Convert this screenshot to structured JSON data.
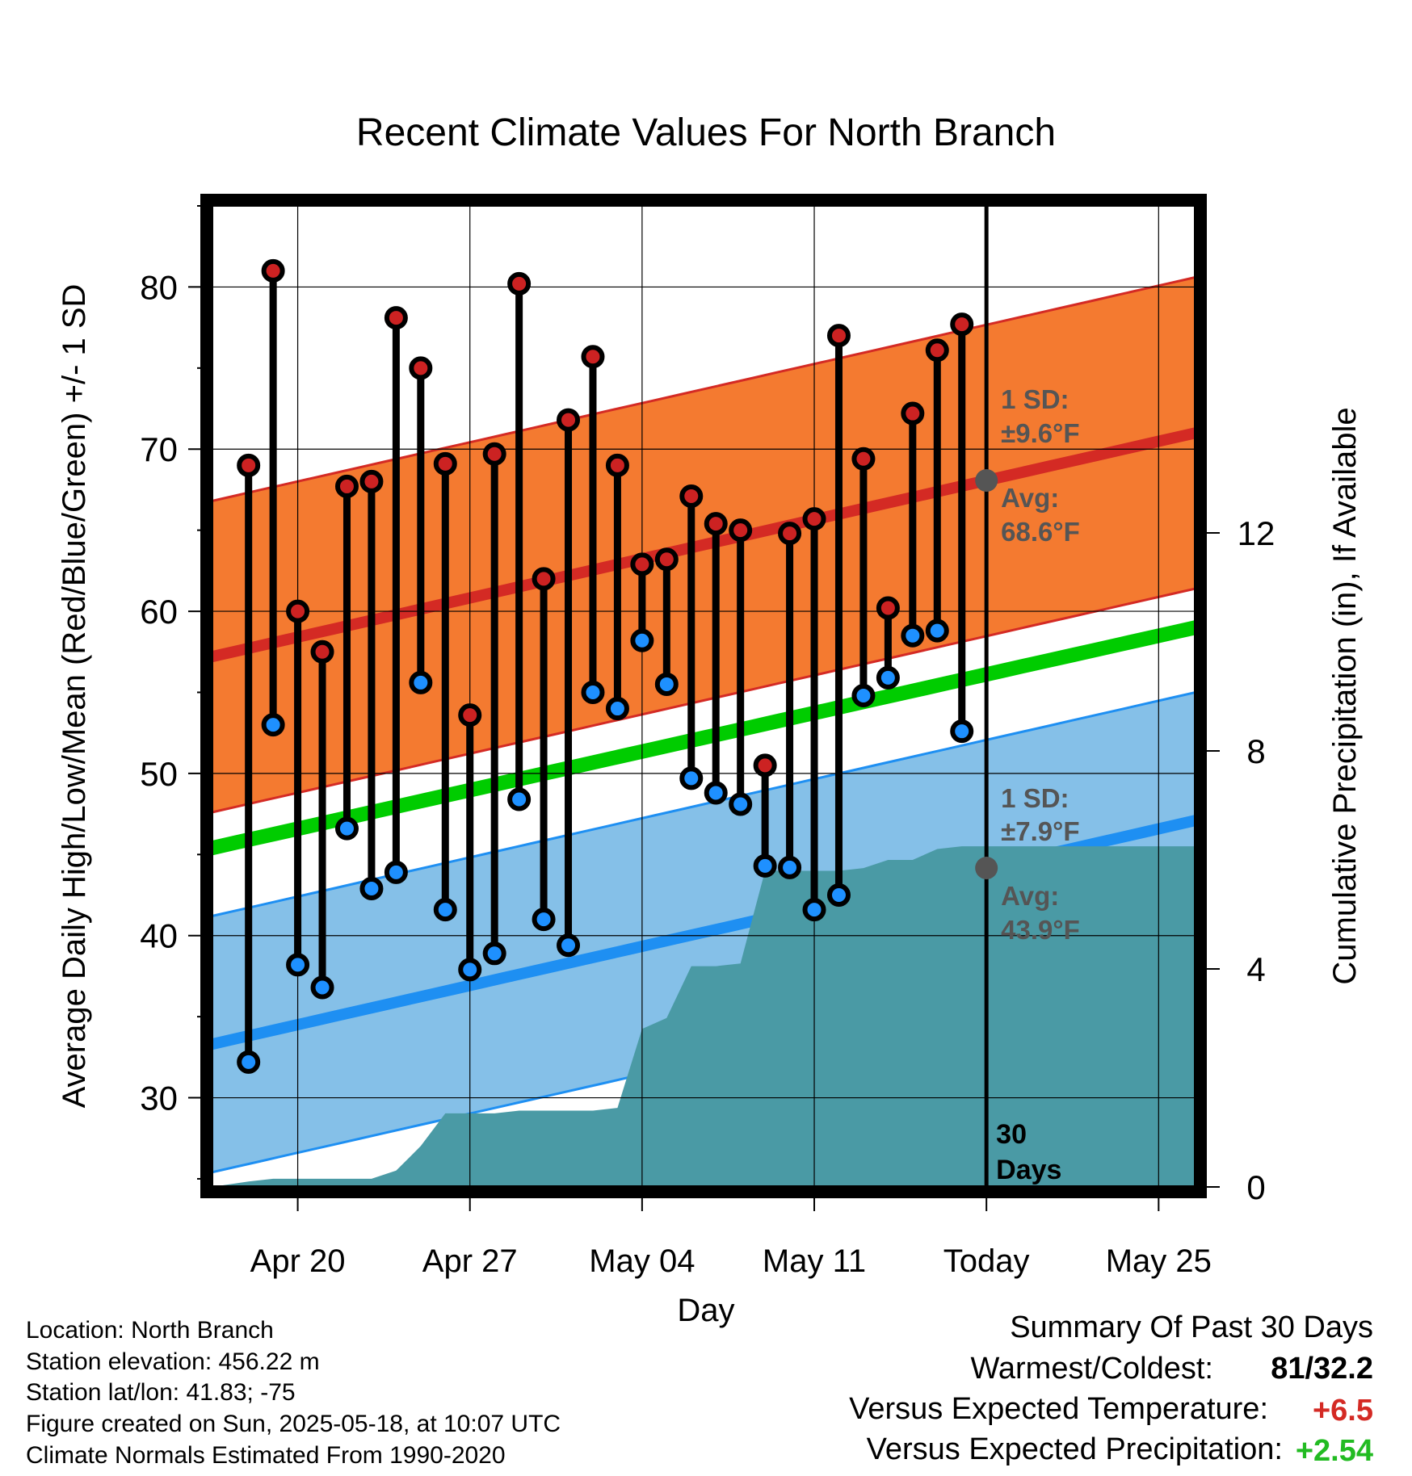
{
  "chart_data": {
    "type": "line",
    "title": "Recent Climate Values For North Branch",
    "xlabel": "Day",
    "ylabel": "Average Daily High/Low/Mean (Red/Blue/Green) +/- 1 SD",
    "y2label": "Cumulative Precipitation (in), If Available",
    "x_range": [
      -1.5,
      38.5
    ],
    "ylim": [
      24.5,
      85
    ],
    "y2lim": [
      0,
      18
    ],
    "y_ticks": [
      30,
      40,
      50,
      60,
      70,
      80
    ],
    "y2_ticks": [
      0,
      4,
      8,
      12
    ],
    "x_ticks": [
      {
        "day": 2,
        "label": "Apr 20"
      },
      {
        "day": 9,
        "label": "Apr 27"
      },
      {
        "day": 16,
        "label": "May 04"
      },
      {
        "day": 23,
        "label": "May 11"
      },
      {
        "day": 30,
        "label": "Today"
      },
      {
        "day": 37,
        "label": "May 25"
      }
    ],
    "today_day": 30,
    "today_label_line1": "30",
    "today_label_line2": "Days",
    "daily_highs": [
      69.0,
      81.0,
      60.0,
      57.5,
      67.7,
      68.0,
      78.1,
      75.0,
      69.1,
      53.6,
      69.7,
      80.2,
      62.0,
      71.8,
      75.7,
      69.0,
      62.9,
      63.2,
      67.1,
      65.4,
      65.0,
      50.5,
      64.8,
      65.7,
      77.0,
      69.4,
      60.2,
      72.2,
      76.1,
      77.7
    ],
    "daily_lows": [
      32.2,
      53.0,
      38.2,
      36.8,
      46.6,
      42.9,
      43.9,
      55.6,
      41.6,
      37.9,
      38.9,
      48.4,
      41.0,
      39.4,
      55.0,
      54.0,
      58.2,
      55.5,
      49.7,
      48.8,
      48.1,
      44.3,
      44.2,
      41.6,
      42.5,
      54.8,
      55.9,
      58.5,
      58.8,
      52.6
    ],
    "normal_high": {
      "start": 57.2,
      "end": 71.0,
      "sd": 9.6
    },
    "normal_low": {
      "start": 33.3,
      "end": 47.1,
      "sd": 7.9
    },
    "normal_mean": {
      "start": 45.4,
      "end": 59.0
    },
    "precip_cumulative": [
      0.1,
      0.15,
      0.15,
      0.15,
      0.15,
      0.15,
      0.3,
      0.75,
      1.35,
      1.35,
      1.35,
      1.4,
      1.4,
      1.4,
      1.4,
      1.45,
      2.9,
      3.1,
      4.05,
      4.05,
      4.1,
      5.8,
      5.8,
      5.8,
      5.8,
      5.85,
      6.0,
      6.0,
      6.2,
      6.25,
      6.25
    ],
    "annotations": {
      "high_sd_label": "1 SD:",
      "high_sd_value": "±9.6°F",
      "high_avg_label": "Avg:",
      "high_avg_value": "68.6°F",
      "low_sd_label": "1 SD:",
      "low_sd_value": "±7.9°F",
      "low_avg_label": "Avg:",
      "low_avg_value": "43.9°F"
    },
    "colors": {
      "high_band": "#f47a30",
      "high_line": "#d42a24",
      "low_band": "#85c0e8",
      "low_line": "#1e8ff2",
      "mean_line": "#00cc00",
      "precip": "#4a9aa5",
      "high_dot": "#cc2222",
      "low_dot": "#1e90ff",
      "annotation": "#555555"
    }
  },
  "footer": {
    "location": "Location: North Branch",
    "elevation": "Station elevation: 456.22 m",
    "latlon": "Station lat/lon: 41.83; -75",
    "created": "Figure created on Sun, 2025-05-18, at 10:07 UTC",
    "normals": "Climate Normals Estimated From 1990-2020"
  },
  "summary": {
    "title": "Summary Of Past 30 Days",
    "warm_cold_label": "Warmest/Coldest:",
    "warmest": "81",
    "coldest": "32.2",
    "temp_label": "Versus Expected Temperature:",
    "temp_value": "+6.5",
    "temp_color": "#d42a24",
    "precip_label": "Versus Expected Precipitation:",
    "precip_value": "+2.54",
    "precip_color": "#22bb22"
  }
}
